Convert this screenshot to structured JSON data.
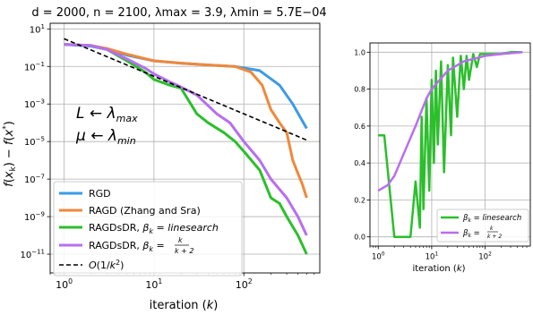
{
  "figure_title": "d = 2000,  n = 2100,  λmax = 3.9,  λmin = 5.7E−04",
  "chart_data": [
    {
      "type": "line",
      "title": "",
      "xlabel": "iteration (k)",
      "ylabel": "f(x_k) − f(x*)",
      "x_scale": "log",
      "y_scale": "log",
      "xlim": [
        0.7,
        700
      ],
      "ylim": [
        1e-12,
        20
      ],
      "x_ticks": [
        1,
        10,
        100
      ],
      "x_tick_labels": [
        "10^0",
        "10^1",
        "10^2"
      ],
      "y_ticks": [
        10,
        0.1,
        0.001,
        1e-05,
        1e-07,
        1e-09,
        1e-11
      ],
      "y_tick_labels": [
        "10^1",
        "10^-1",
        "10^-3",
        "10^-5",
        "10^-7",
        "10^-9",
        "10^-11"
      ],
      "grid": true,
      "legend_position": "bottom-left",
      "annotations": [
        "L ← λmax",
        "μ ← λmin"
      ],
      "series": [
        {
          "name": "RGD",
          "color": "#3b9ae8",
          "style": "solid",
          "x": [
            1,
            2,
            3,
            5,
            10,
            20,
            40,
            80,
            150,
            250,
            350,
            500
          ],
          "y": [
            1.5,
            1.2,
            0.8,
            0.4,
            0.2,
            0.15,
            0.12,
            0.1,
            0.06,
            0.01,
            0.001,
            5e-05
          ]
        },
        {
          "name": "RAGD (Zhang and Sra)",
          "color": "#f0883a",
          "style": "solid",
          "x": [
            1,
            2,
            3,
            5,
            10,
            20,
            40,
            80,
            120,
            160,
            200,
            250,
            300,
            350,
            400,
            450,
            500
          ],
          "y": [
            1.5,
            1.3,
            0.9,
            0.45,
            0.2,
            0.15,
            0.12,
            0.1,
            0.05,
            0.01,
            0.0005,
            0.0001,
            3e-05,
            1e-06,
            2e-07,
            5e-08,
            1e-08
          ]
        },
        {
          "name": "RAGDsDR, βk = linesearch",
          "color": "#2bbf2b",
          "style": "solid",
          "x": [
            1,
            2,
            3,
            5,
            8,
            10,
            15,
            20,
            30,
            40,
            60,
            80,
            100,
            150,
            200,
            250,
            300,
            400,
            500
          ],
          "y": [
            1.5,
            1.3,
            0.8,
            0.2,
            0.05,
            0.02,
            0.01,
            0.007,
            0.0003,
            0.0001,
            3e-05,
            1e-05,
            3e-06,
            3e-07,
            1e-08,
            5e-09,
            1e-09,
            1e-10,
            1e-11
          ]
        },
        {
          "name": "RAGDsDR, βk = k/(k+2)",
          "color": "#b86ef0",
          "style": "solid",
          "x": [
            1,
            2,
            3,
            5,
            8,
            10,
            15,
            20,
            30,
            50,
            70,
            100,
            150,
            200,
            300,
            400,
            500
          ],
          "y": [
            1.5,
            1.3,
            0.8,
            0.25,
            0.08,
            0.04,
            0.015,
            0.008,
            0.003,
            0.0003,
            0.0001,
            1e-05,
            1e-06,
            1e-07,
            1e-08,
            1e-09,
            1e-10
          ]
        },
        {
          "name": "O(1/k²)",
          "color": "#000000",
          "style": "dashed",
          "x": [
            1,
            500
          ],
          "y": [
            3.0,
            1.2e-05
          ]
        }
      ]
    },
    {
      "type": "line",
      "title": "",
      "xlabel": "iteration (k)",
      "ylabel": "",
      "x_scale": "log",
      "y_scale": "linear",
      "xlim": [
        0.7,
        700
      ],
      "ylim": [
        -0.05,
        1.05
      ],
      "x_ticks": [
        1,
        10,
        100
      ],
      "x_tick_labels": [
        "10^0",
        "10^1",
        "10^2"
      ],
      "y_ticks": [
        0.0,
        0.2,
        0.4,
        0.6,
        0.8,
        1.0
      ],
      "y_tick_labels": [
        "0.0",
        "0.2",
        "0.4",
        "0.6",
        "0.8",
        "1.0"
      ],
      "grid": true,
      "legend_position": "bottom-right",
      "series": [
        {
          "name": "βk = linesearch",
          "color": "#2bbf2b",
          "style": "solid",
          "x": [
            1,
            1.3,
            2,
            3,
            4,
            5,
            6,
            6.5,
            7,
            8,
            9,
            10,
            11,
            12,
            13,
            15,
            17,
            20,
            23,
            25,
            30,
            35,
            40,
            45,
            50,
            60,
            70,
            80,
            100,
            150,
            200,
            300,
            500
          ],
          "y": [
            0.55,
            0.55,
            0.0,
            0.0,
            0.0,
            0.3,
            0.05,
            0.65,
            0.15,
            0.75,
            0.25,
            0.85,
            0.4,
            0.9,
            0.5,
            0.95,
            0.35,
            0.93,
            0.55,
            0.97,
            0.65,
            0.98,
            0.8,
            0.98,
            0.85,
            0.99,
            0.92,
            0.99,
            0.99,
            0.99,
            0.99,
            1.0,
            1.0
          ]
        },
        {
          "name": "βk = k/(k+2)",
          "color": "#b86ef0",
          "style": "solid",
          "x": [
            1,
            1.5,
            2,
            3,
            5,
            8,
            10,
            20,
            40,
            100,
            200,
            500
          ],
          "y": [
            0.25,
            0.28,
            0.33,
            0.45,
            0.6,
            0.75,
            0.8,
            0.9,
            0.95,
            0.98,
            0.99,
            1.0
          ]
        }
      ]
    }
  ]
}
